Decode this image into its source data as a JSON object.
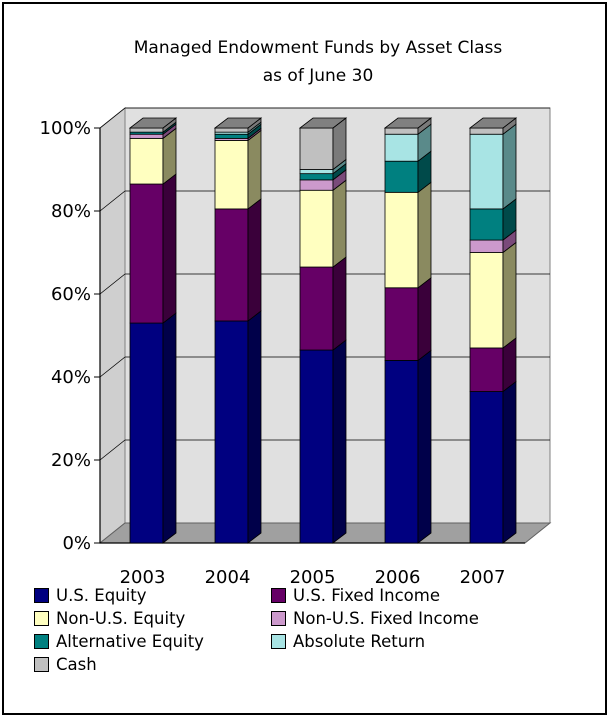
{
  "chart_data": {
    "type": "bar",
    "stacked": true,
    "percent": true,
    "three_d": true,
    "title": "Managed Endowment Funds by Asset Class",
    "subtitle": "as of June 30",
    "categories": [
      "2003",
      "2004",
      "2005",
      "2006",
      "2007"
    ],
    "y_ticks": [
      "0%",
      "20%",
      "40%",
      "60%",
      "80%",
      "100%"
    ],
    "ylim": [
      0,
      100
    ],
    "grid": true,
    "legend_position": "bottom",
    "series": [
      {
        "name": "U.S. Equity",
        "color": "#000080",
        "side": "#00004a",
        "values": [
          53,
          53.5,
          46.5,
          44,
          36.5
        ]
      },
      {
        "name": "U.S. Fixed Income",
        "color": "#660066",
        "side": "#3a003a",
        "values": [
          33.5,
          27,
          20,
          17.5,
          10.5
        ]
      },
      {
        "name": "Non-U.S. Equity",
        "color": "#ffffc0",
        "side": "#8a8a60",
        "values": [
          11,
          16.5,
          18.5,
          23,
          23
        ]
      },
      {
        "name": "Non-U.S. Fixed Income",
        "color": "#cc99cc",
        "side": "#7a4a7a",
        "values": [
          1,
          0.5,
          2.5,
          0,
          3
        ]
      },
      {
        "name": "Alternative Equity",
        "color": "#008080",
        "side": "#004a4a",
        "values": [
          0.5,
          1,
          1.5,
          7.5,
          7.5
        ]
      },
      {
        "name": "Absolute Return",
        "color": "#a8e4e4",
        "side": "#5a8a8a",
        "values": [
          0,
          0.5,
          1,
          6.5,
          18
        ]
      },
      {
        "name": "Cash",
        "color": "#c0c0c0",
        "side": "#7a7a7a",
        "values": [
          1,
          1,
          10,
          1.5,
          1.5
        ]
      }
    ]
  }
}
